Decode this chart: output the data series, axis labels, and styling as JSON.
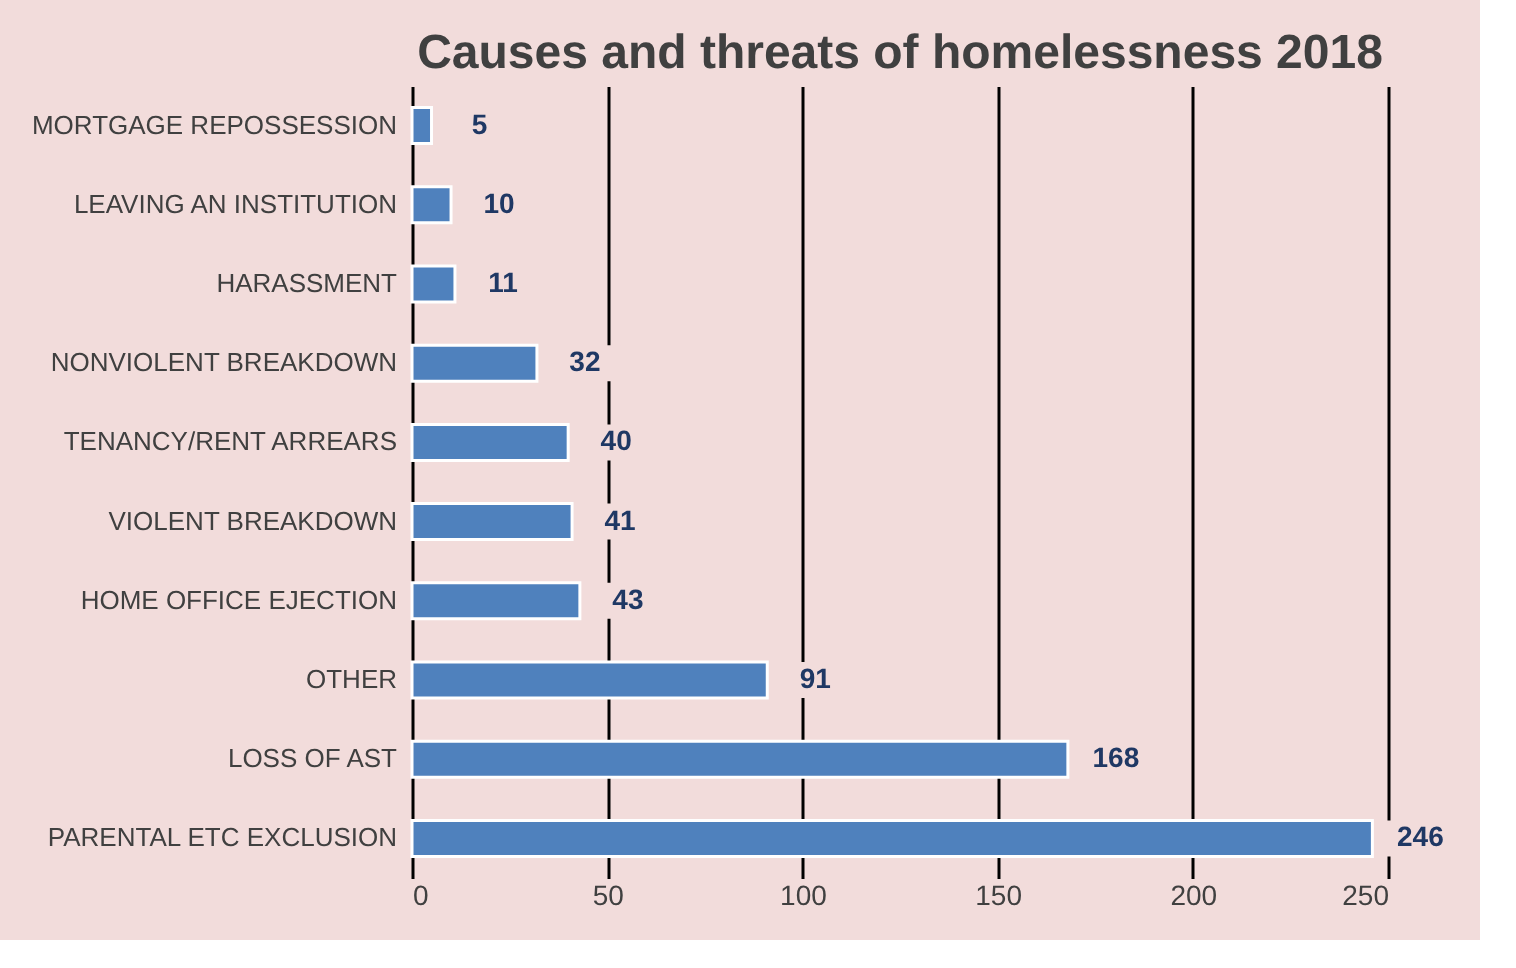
{
  "chart_data": {
    "type": "bar",
    "orientation": "horizontal",
    "title": "Causes and threats of homelessness 2018",
    "categories": [
      "MORTGAGE REPOSSESSION",
      "LEAVING AN INSTITUTION",
      "HARASSMENT",
      "NONVIOLENT BREAKDOWN",
      "TENANCY/RENT ARREARS",
      "VIOLENT BREAKDOWN",
      "HOME OFFICE EJECTION",
      "OTHER",
      "LOSS OF AST",
      "PARENTAL ETC EXCLUSION"
    ],
    "values": [
      5,
      10,
      11,
      32,
      40,
      41,
      43,
      91,
      168,
      246
    ],
    "color": "#4f81bd",
    "xlim": [
      0,
      250
    ],
    "xticks": [
      0,
      50,
      100,
      150,
      200,
      250
    ],
    "grid": "x",
    "data_labels": true
  }
}
